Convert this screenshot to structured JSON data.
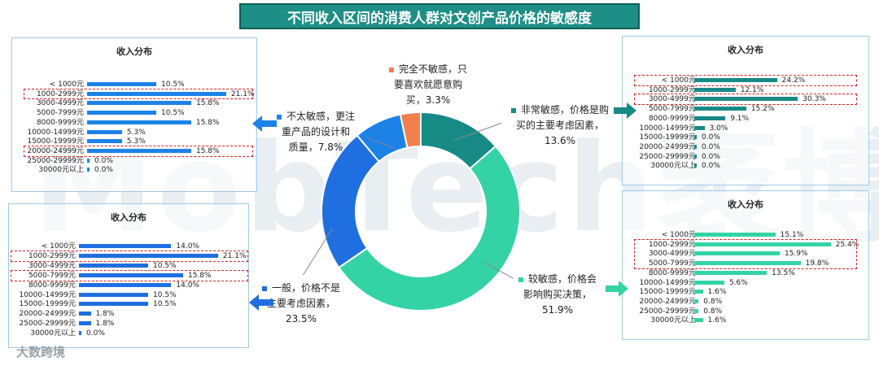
{
  "title": "不同收入区间的消费人群对文创产品价格的敏感度",
  "watermark": "MobTech袤博",
  "footer": "大数跨境",
  "colors": {
    "very_sensitive": "#178a86",
    "sensitive": "#34d3a6",
    "neutral": "#1f6fe0",
    "less_sensitive": "#1d82e8",
    "insensitive": "#f47f4e"
  },
  "chart_data": [
    {
      "type": "pie",
      "variant": "donut",
      "slices": [
        {
          "label": "非常敏感，价格是购买的主要考虑因素，",
          "value": 13.6,
          "value_label": "13.6%",
          "color": "#178a86"
        },
        {
          "label": "较敏感，价格会影响购买决策，",
          "value": 51.9,
          "value_label": "51.9%",
          "color": "#34d3a6"
        },
        {
          "label": "一般，价格不是主要考虑因素，",
          "value": 23.5,
          "value_label": "23.5%",
          "color": "#1f6fe0"
        },
        {
          "label": "不太敏感，更注重产品的设计和质量，",
          "value": 7.8,
          "value_label": "7.8%",
          "color": "#1d82e8"
        },
        {
          "label": "完全不敏感，只要喜欢就愿意购买，",
          "value": 3.3,
          "value_label": "3.3%",
          "color": "#f47f4e"
        }
      ]
    },
    {
      "type": "bar",
      "orientation": "horizontal",
      "title": "收入分布",
      "panel": "非常敏感",
      "categories": [
        "< 1000元",
        "1000-2999元",
        "3000-4999元",
        "5000-7999元",
        "8000-9999元",
        "10000-14999元",
        "15000-19999元",
        "20000-24999元",
        "25000-29999元",
        "30000元以上"
      ],
      "values": [
        24.2,
        12.1,
        30.3,
        15.2,
        9.1,
        3.0,
        0.0,
        0.0,
        0.0,
        0.0
      ],
      "labels": [
        "24.2%",
        "12.1%",
        "30.3%",
        "15.2%",
        "9.1%",
        "3.0%",
        "0.0%",
        "0.0%",
        "0.0%",
        "0.0%"
      ],
      "highlighted": [
        0,
        2
      ]
    },
    {
      "type": "bar",
      "orientation": "horizontal",
      "title": "收入分布",
      "panel": "较敏感",
      "categories": [
        "< 1000元",
        "1000-2999元",
        "3000-4999元",
        "5000-7999元",
        "8000-9999元",
        "10000-14999元",
        "15000-19999元",
        "20000-24999元",
        "25000-29999元",
        "30000元以上"
      ],
      "values": [
        15.1,
        25.4,
        15.9,
        19.8,
        13.5,
        5.6,
        1.6,
        0.8,
        0.8,
        1.6
      ],
      "labels": [
        "15.1%",
        "25.4%",
        "15.9%",
        "19.8%",
        "13.5%",
        "5.6%",
        "1.6%",
        "0.8%",
        "0.8%",
        "1.6%"
      ],
      "highlighted": [
        1,
        2,
        3
      ]
    },
    {
      "type": "bar",
      "orientation": "horizontal",
      "title": "收入分布",
      "panel": "一般",
      "categories": [
        "< 1000元",
        "1000-2999元",
        "3000-4999元",
        "5000-7999元",
        "8000-9999元",
        "10000-14999元",
        "15000-19999元",
        "20000-24999元",
        "25000-29999元",
        "30000元以上"
      ],
      "values": [
        14.0,
        21.1,
        10.5,
        15.8,
        14.0,
        10.5,
        10.5,
        1.8,
        1.8,
        0.0
      ],
      "labels": [
        "14.0%",
        "21.1%",
        "10.5%",
        "15.8%",
        "14.0%",
        "10.5%",
        "10.5%",
        "1.8%",
        "1.8%",
        "0.0%"
      ],
      "highlighted": [
        1,
        3
      ]
    },
    {
      "type": "bar",
      "orientation": "horizontal",
      "title": "收入分布",
      "panel": "不太敏感",
      "categories": [
        "< 1000元",
        "1000-2999元",
        "3000-4999元",
        "5000-7999元",
        "8000-9999元",
        "10000-14999元",
        "15000-19999元",
        "20000-24999元",
        "25000-29999元",
        "30000元以上"
      ],
      "values": [
        10.5,
        21.1,
        15.8,
        10.5,
        15.8,
        5.3,
        5.3,
        15.8,
        0.0,
        0.0
      ],
      "labels": [
        "10.5%",
        "21.1%",
        "15.8%",
        "10.5%",
        "15.8%",
        "5.3%",
        "5.3%",
        "15.8%",
        "0.0%",
        "0.0%"
      ],
      "highlighted": [
        1,
        7
      ]
    }
  ],
  "annotations": {
    "insensitive": {
      "lines": [
        "完全不敏感，只",
        "要喜欢就愿意购",
        "买，3.3%"
      ]
    },
    "very_sensitive": {
      "lines": [
        "非常敏感，价格是购",
        "买的主要考虑因素，",
        "13.6%"
      ]
    },
    "less_sensitive": {
      "lines": [
        "不太敏感，更注",
        "重产品的设计和",
        "质量，7.8%"
      ]
    },
    "neutral": {
      "lines": [
        "一般，价格不是",
        "主要考虑因素，",
        "23.5%"
      ]
    },
    "sensitive": {
      "lines": [
        "较敏感，价格会",
        "影响购买决策，",
        "51.9%"
      ]
    }
  }
}
